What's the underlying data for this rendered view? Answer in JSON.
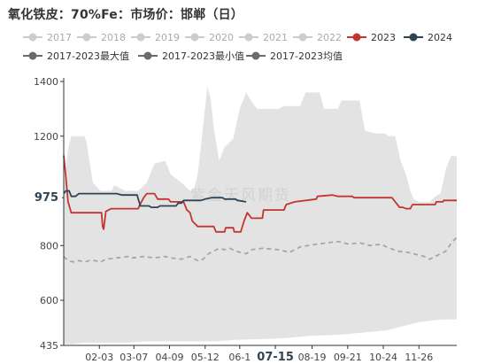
{
  "title": "氧化铁皮：70%Fe：市场价：邯郸（日）",
  "watermark": "紫金天风期货",
  "colors": {
    "band": "#e3e3e3",
    "avg": "#a6a6a6",
    "s2023": "#c23531",
    "s2024": "#2f4554",
    "legend_gray": "#cccccc",
    "legend_dark": "#6b6b6b",
    "axis_text": "#444444"
  },
  "legend": {
    "years": [
      "2017",
      "2018",
      "2019",
      "2020",
      "2021",
      "2022",
      "2023",
      "2024"
    ],
    "stats": [
      "2017-2023最大值",
      "2017-2023最小值",
      "2017-2023均值"
    ]
  },
  "chart_data": {
    "type": "line",
    "title": "氧化铁皮：70%Fe：市场价：邯郸（日）",
    "y_ticks": [
      "1400",
      "1200",
      "975",
      "800",
      "600",
      "435"
    ],
    "y_range": [
      435,
      1400
    ],
    "x_ticks": [
      "02-03",
      "03-07",
      "04-09",
      "05-12",
      "06-1",
      "07-15",
      "08-19",
      "09-21",
      "10-24",
      "11-26"
    ],
    "x_range": [
      1,
      365
    ],
    "highlight_x": "07-15",
    "highlight_y": "975",
    "series": [
      {
        "name": "2023",
        "points": [
          [
            1,
            1130
          ],
          [
            3,
            1050
          ],
          [
            5,
            960
          ],
          [
            8,
            920
          ],
          [
            36,
            920
          ],
          [
            37,
            870
          ],
          [
            38,
            860
          ],
          [
            40,
            925
          ],
          [
            45,
            935
          ],
          [
            70,
            935
          ],
          [
            71,
            945
          ],
          [
            75,
            975
          ],
          [
            78,
            990
          ],
          [
            85,
            990
          ],
          [
            88,
            970
          ],
          [
            98,
            970
          ],
          [
            100,
            960
          ],
          [
            112,
            960
          ],
          [
            115,
            930
          ],
          [
            118,
            920
          ],
          [
            120,
            890
          ],
          [
            125,
            870
          ],
          [
            140,
            870
          ],
          [
            142,
            850
          ],
          [
            150,
            850
          ],
          [
            151,
            865
          ],
          [
            158,
            865
          ],
          [
            159,
            850
          ],
          [
            165,
            850
          ],
          [
            168,
            890
          ],
          [
            171,
            920
          ],
          [
            175,
            900
          ],
          [
            185,
            900
          ],
          [
            186,
            930
          ],
          [
            205,
            930
          ],
          [
            207,
            950
          ],
          [
            215,
            960
          ],
          [
            235,
            970
          ],
          [
            236,
            980
          ],
          [
            250,
            985
          ],
          [
            255,
            980
          ],
          [
            268,
            980
          ],
          [
            270,
            975
          ],
          [
            305,
            975
          ],
          [
            308,
            960
          ],
          [
            312,
            940
          ],
          [
            315,
            940
          ],
          [
            318,
            935
          ],
          [
            322,
            935
          ],
          [
            324,
            950
          ],
          [
            345,
            950
          ],
          [
            346,
            960
          ],
          [
            352,
            960
          ],
          [
            353,
            965
          ],
          [
            365,
            965
          ]
        ]
      },
      {
        "name": "2024",
        "points": [
          [
            1,
            990
          ],
          [
            3,
            1000
          ],
          [
            6,
            1000
          ],
          [
            8,
            980
          ],
          [
            12,
            980
          ],
          [
            15,
            990
          ],
          [
            50,
            990
          ],
          [
            55,
            985
          ],
          [
            69,
            985
          ],
          [
            70,
            970
          ],
          [
            72,
            945
          ],
          [
            80,
            945
          ],
          [
            82,
            940
          ],
          [
            88,
            940
          ],
          [
            90,
            945
          ],
          [
            105,
            945
          ],
          [
            107,
            955
          ],
          [
            110,
            955
          ],
          [
            112,
            965
          ],
          [
            128,
            965
          ],
          [
            132,
            970
          ],
          [
            138,
            975
          ],
          [
            148,
            975
          ],
          [
            150,
            970
          ],
          [
            160,
            970
          ],
          [
            162,
            965
          ],
          [
            170,
            960
          ]
        ]
      },
      {
        "name": "2017-2023均值",
        "points": [
          [
            1,
            760
          ],
          [
            5,
            745
          ],
          [
            10,
            740
          ],
          [
            15,
            745
          ],
          [
            20,
            740
          ],
          [
            25,
            745
          ],
          [
            30,
            745
          ],
          [
            35,
            740
          ],
          [
            40,
            750
          ],
          [
            50,
            755
          ],
          [
            60,
            760
          ],
          [
            65,
            755
          ],
          [
            75,
            760
          ],
          [
            85,
            755
          ],
          [
            95,
            760
          ],
          [
            100,
            755
          ],
          [
            110,
            750
          ],
          [
            118,
            760
          ],
          [
            125,
            745
          ],
          [
            130,
            750
          ],
          [
            135,
            770
          ],
          [
            145,
            790
          ],
          [
            150,
            785
          ],
          [
            155,
            790
          ],
          [
            160,
            780
          ],
          [
            170,
            770
          ],
          [
            175,
            785
          ],
          [
            185,
            790
          ],
          [
            200,
            785
          ],
          [
            210,
            775
          ],
          [
            220,
            795
          ],
          [
            235,
            805
          ],
          [
            245,
            810
          ],
          [
            255,
            815
          ],
          [
            265,
            805
          ],
          [
            275,
            810
          ],
          [
            285,
            800
          ],
          [
            295,
            805
          ],
          [
            300,
            795
          ],
          [
            310,
            780
          ],
          [
            320,
            775
          ],
          [
            330,
            765
          ],
          [
            335,
            760
          ],
          [
            340,
            750
          ],
          [
            345,
            760
          ],
          [
            355,
            780
          ],
          [
            360,
            810
          ],
          [
            365,
            830
          ]
        ]
      }
    ],
    "band": {
      "name": "2017-2023最大值 / 2017-2023最小值",
      "upper": [
        [
          1,
          1020
        ],
        [
          5,
          1150
        ],
        [
          8,
          1200
        ],
        [
          20,
          1200
        ],
        [
          22,
          1180
        ],
        [
          28,
          1030
        ],
        [
          35,
          1000
        ],
        [
          45,
          1000
        ],
        [
          48,
          1020
        ],
        [
          58,
          1000
        ],
        [
          70,
          1000
        ],
        [
          78,
          1030
        ],
        [
          85,
          1100
        ],
        [
          95,
          1110
        ],
        [
          100,
          1060
        ],
        [
          110,
          1030
        ],
        [
          118,
          1000
        ],
        [
          122,
          1010
        ],
        [
          125,
          1060
        ],
        [
          128,
          1160
        ],
        [
          134,
          1380
        ],
        [
          137,
          1340
        ],
        [
          140,
          1230
        ],
        [
          145,
          1110
        ],
        [
          150,
          1160
        ],
        [
          158,
          1190
        ],
        [
          164,
          1300
        ],
        [
          170,
          1360
        ],
        [
          176,
          1320
        ],
        [
          180,
          1300
        ],
        [
          195,
          1300
        ],
        [
          200,
          1300
        ],
        [
          205,
          1310
        ],
        [
          220,
          1310
        ],
        [
          225,
          1360
        ],
        [
          238,
          1360
        ],
        [
          242,
          1300
        ],
        [
          255,
          1300
        ],
        [
          258,
          1330
        ],
        [
          275,
          1330
        ],
        [
          280,
          1220
        ],
        [
          290,
          1210
        ],
        [
          298,
          1210
        ],
        [
          302,
          1200
        ],
        [
          308,
          1200
        ],
        [
          313,
          1110
        ],
        [
          318,
          1060
        ],
        [
          322,
          1000
        ],
        [
          325,
          970
        ],
        [
          330,
          960
        ],
        [
          340,
          960
        ],
        [
          345,
          980
        ],
        [
          350,
          990
        ],
        [
          355,
          1080
        ],
        [
          360,
          1130
        ],
        [
          365,
          1125
        ]
      ],
      "lower": [
        [
          1,
          440
        ],
        [
          10,
          440
        ],
        [
          20,
          445
        ],
        [
          60,
          445
        ],
        [
          80,
          450
        ],
        [
          100,
          450
        ],
        [
          140,
          450
        ],
        [
          160,
          455
        ],
        [
          200,
          460
        ],
        [
          230,
          470
        ],
        [
          260,
          475
        ],
        [
          300,
          490
        ],
        [
          330,
          520
        ],
        [
          350,
          530
        ],
        [
          365,
          530
        ]
      ]
    }
  }
}
